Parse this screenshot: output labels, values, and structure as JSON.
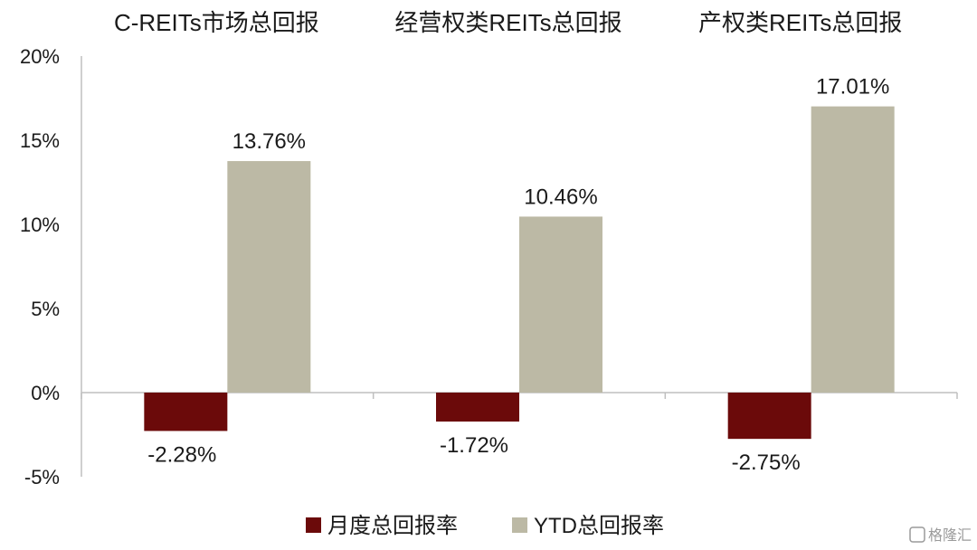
{
  "chart_data": {
    "type": "bar",
    "categories": [
      "C-REITs市场总回报",
      "经营权类REITs总回报",
      "产权类REITs总回报"
    ],
    "series": [
      {
        "name": "月度总回报率",
        "values": [
          -2.28,
          -1.72,
          -2.75
        ],
        "labels": [
          "-2.28%",
          "-1.72%",
          "-2.75%"
        ],
        "color": "#6b0a0a"
      },
      {
        "name": "YTD总回报率",
        "values": [
          13.76,
          10.46,
          17.01
        ],
        "labels": [
          "13.76%",
          "10.46%",
          "17.01%"
        ],
        "color": "#bcb9a5"
      }
    ],
    "ylim": [
      -5,
      20
    ],
    "yticks": [
      -5,
      0,
      5,
      10,
      15,
      20
    ],
    "ytick_labels": [
      "-5%",
      "0%",
      "5%",
      "10%",
      "15%",
      "20%"
    ],
    "grid": false,
    "legend_position": "bottom-center",
    "title": "",
    "xlabel": "",
    "ylabel": ""
  },
  "watermark": {
    "text": "格隆汇",
    "icon": "watermark-logo-icon"
  }
}
